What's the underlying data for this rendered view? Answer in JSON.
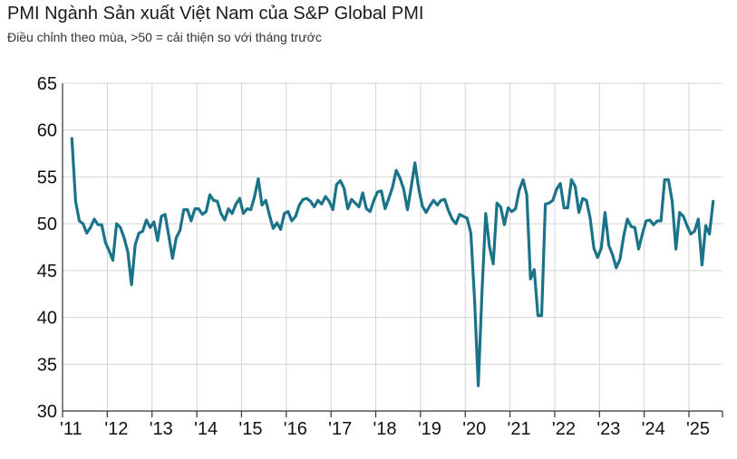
{
  "chart_data": {
    "type": "line",
    "title": "PMI Ngành Sản xuất Việt Nam của S&P Global PMI",
    "subtitle": "Điều chỉnh theo mùa, >50 = cải thiện so với tháng trước",
    "xlabel": "",
    "ylabel": "",
    "ylim": [
      30,
      65
    ],
    "yticks": [
      30,
      35,
      40,
      45,
      50,
      55,
      60,
      65
    ],
    "xlim": [
      2011.0,
      2025.75
    ],
    "xtick_labels": [
      "'11",
      "'12",
      "'13",
      "'14",
      "'15",
      "'16",
      "'17",
      "'18",
      "'19",
      "'20",
      "'21",
      "'22",
      "'23",
      "'24",
      "'25"
    ],
    "grid": true,
    "line_color": "#1b7389",
    "series": [
      {
        "name": "",
        "x": [
          "2011-03",
          "2011-04",
          "2011-05",
          "2011-06",
          "2011-07",
          "2011-08",
          "2011-09",
          "2011-10",
          "2011-11",
          "2011-12",
          "2012-01",
          "2012-02",
          "2012-03",
          "2012-04",
          "2012-05",
          "2012-06",
          "2012-07",
          "2012-08",
          "2012-09",
          "2012-10",
          "2012-11",
          "2012-12",
          "2013-01",
          "2013-02",
          "2013-03",
          "2013-04",
          "2013-05",
          "2013-06",
          "2013-07",
          "2013-08",
          "2013-09",
          "2013-10",
          "2013-11",
          "2013-12",
          "2014-01",
          "2014-02",
          "2014-03",
          "2014-04",
          "2014-05",
          "2014-06",
          "2014-07",
          "2014-08",
          "2014-09",
          "2014-10",
          "2014-11",
          "2014-12",
          "2015-01",
          "2015-02",
          "2015-03",
          "2015-04",
          "2015-05",
          "2015-06",
          "2015-07",
          "2015-08",
          "2015-09",
          "2015-10",
          "2015-11",
          "2015-12",
          "2016-01",
          "2016-02",
          "2016-03",
          "2016-04",
          "2016-05",
          "2016-06",
          "2016-07",
          "2016-08",
          "2016-09",
          "2016-10",
          "2016-11",
          "2016-12",
          "2017-01",
          "2017-02",
          "2017-03",
          "2017-04",
          "2017-05",
          "2017-06",
          "2017-07",
          "2017-08",
          "2017-09",
          "2017-10",
          "2017-11",
          "2017-12",
          "2018-01",
          "2018-02",
          "2018-03",
          "2018-04",
          "2018-05",
          "2018-06",
          "2018-07",
          "2018-08",
          "2018-09",
          "2018-10",
          "2018-11",
          "2018-12",
          "2019-01",
          "2019-02",
          "2019-03",
          "2019-04",
          "2019-05",
          "2019-06",
          "2019-07",
          "2019-08",
          "2019-09",
          "2019-10",
          "2019-11",
          "2019-12",
          "2020-01",
          "2020-02",
          "2020-03",
          "2020-04",
          "2020-05",
          "2020-06",
          "2020-07",
          "2020-08",
          "2020-09",
          "2020-10",
          "2020-11",
          "2020-12",
          "2021-01",
          "2021-02",
          "2021-03",
          "2021-04",
          "2021-05",
          "2021-06",
          "2021-07",
          "2021-08",
          "2021-09",
          "2021-10",
          "2021-11",
          "2021-12",
          "2022-01",
          "2022-02",
          "2022-03",
          "2022-04",
          "2022-05",
          "2022-06",
          "2022-07",
          "2022-08",
          "2022-09",
          "2022-10",
          "2022-11",
          "2022-12",
          "2023-01",
          "2023-02",
          "2023-03",
          "2023-04",
          "2023-05",
          "2023-06",
          "2023-07",
          "2023-08",
          "2023-09",
          "2023-10",
          "2023-11",
          "2023-12",
          "2024-01",
          "2024-02",
          "2024-03",
          "2024-04",
          "2024-05",
          "2024-06",
          "2024-07",
          "2024-08",
          "2024-09",
          "2024-10",
          "2024-11",
          "2024-12",
          "2025-01",
          "2025-02",
          "2025-03",
          "2025-04",
          "2025-05",
          "2025-06",
          "2025-07"
        ],
        "values": [
          59.1,
          52.4,
          50.3,
          50.0,
          49.0,
          49.6,
          50.5,
          49.9,
          49.9,
          48.0,
          47.1,
          46.1,
          50.0,
          49.6,
          48.5,
          47.0,
          43.5,
          47.8,
          49.0,
          49.2,
          50.4,
          49.6,
          50.2,
          48.2,
          50.8,
          51.0,
          48.7,
          46.3,
          48.5,
          49.3,
          51.5,
          51.5,
          50.3,
          51.6,
          51.6,
          51.0,
          51.3,
          53.1,
          52.5,
          52.4,
          51.1,
          50.4,
          51.6,
          51.1,
          52.1,
          52.7,
          51.1,
          51.6,
          51.5,
          52.9,
          54.8,
          52.0,
          52.5,
          50.9,
          49.5,
          50.1,
          49.4,
          51.1,
          51.3,
          50.3,
          50.8,
          52.0,
          52.6,
          52.7,
          52.4,
          51.8,
          52.5,
          52.1,
          52.9,
          52.4,
          51.5,
          54.2,
          54.6,
          53.8,
          51.6,
          52.6,
          52.2,
          51.8,
          53.3,
          51.6,
          51.3,
          52.5,
          53.4,
          53.5,
          51.6,
          52.7,
          53.9,
          55.7,
          54.9,
          53.7,
          51.5,
          53.9,
          56.5,
          53.8,
          51.9,
          51.2,
          51.9,
          52.5,
          52.0,
          52.5,
          52.6,
          51.4,
          50.5,
          50.0,
          51.0,
          50.8,
          50.6,
          49.0,
          41.9,
          32.7,
          42.7,
          51.1,
          47.6,
          45.7,
          52.2,
          51.8,
          49.9,
          51.7,
          51.3,
          51.6,
          53.6,
          54.7,
          53.1,
          44.1,
          45.1,
          40.2,
          40.2,
          52.1,
          52.2,
          52.5,
          53.7,
          54.3,
          51.7,
          51.7,
          54.7,
          54.0,
          51.2,
          52.7,
          52.5,
          50.6,
          47.4,
          46.4,
          47.4,
          51.2,
          47.7,
          46.7,
          45.3,
          46.2,
          48.7,
          50.5,
          49.7,
          49.6,
          47.3,
          48.9,
          50.3,
          50.4,
          49.9,
          50.3,
          50.3,
          54.7,
          54.7,
          52.4,
          47.3,
          51.2,
          50.8,
          49.8,
          48.9,
          49.2,
          50.5,
          45.6,
          49.8,
          48.9,
          52.4
        ]
      }
    ]
  }
}
